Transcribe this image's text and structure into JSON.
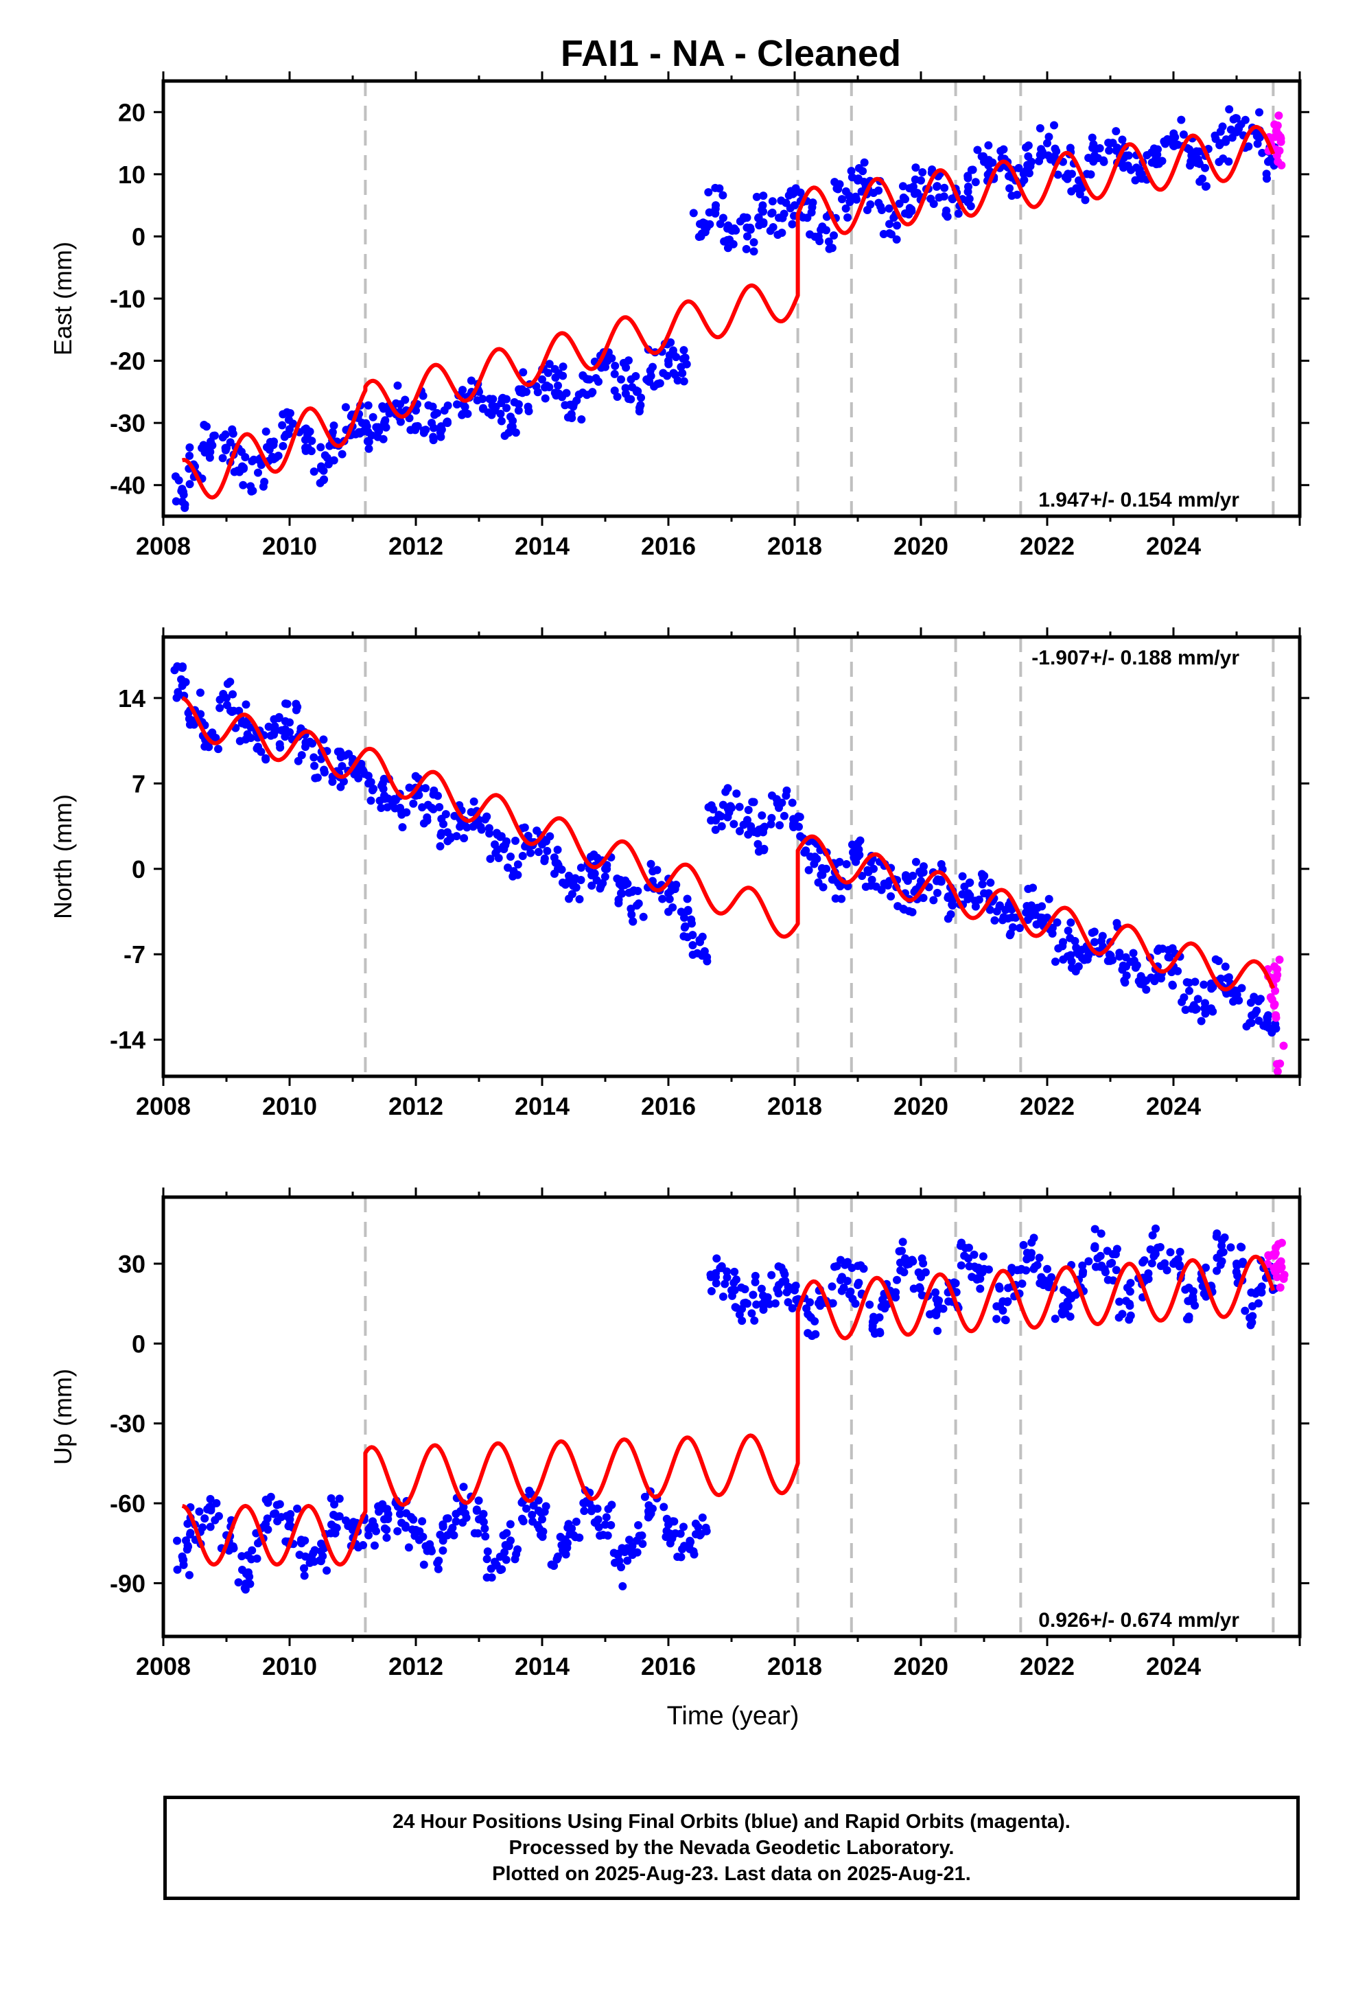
{
  "title": "FAI1  - NA - Cleaned",
  "xlabel": "Time (year)",
  "footer": {
    "line1": "24 Hour Positions Using Final Orbits (blue) and Rapid Orbits (magenta).",
    "line2": "Processed by the Nevada Geodetic Laboratory.",
    "line3": "Plotted on 2025-Aug-23. Last data on 2025-Aug-21."
  },
  "colors": {
    "final": "#0000ff",
    "rapid": "#ff00ff",
    "model": "#ff0000",
    "breaks": "#c0c0c0"
  },
  "chart_data": [
    {
      "type": "scatter",
      "panel": "east",
      "title": "",
      "ylabel": "East (mm)",
      "xlim": [
        2008.0,
        2026.0
      ],
      "ylim": [
        -45,
        25
      ],
      "xticks": [
        2008,
        2010,
        2012,
        2014,
        2016,
        2018,
        2020,
        2022,
        2024
      ],
      "yticks": [
        -40,
        -30,
        -20,
        -10,
        0,
        10,
        20
      ],
      "rate_label": "1.947+/- 0.154 mm/yr",
      "rate_position": "bottom-right",
      "breaks": [
        2011.2,
        2018.05,
        2018.9,
        2020.55,
        2021.58,
        2025.58
      ],
      "segments": [
        {
          "x": [
            2008.3,
            2011.2
          ],
          "offset": [
            -40,
            -28
          ],
          "amp": 4
        },
        {
          "x": [
            2011.2,
            2018.05
          ],
          "offset": [
            -27,
            -9.5
          ],
          "amp": 3.5
        },
        {
          "x": [
            2018.05,
            2025.58
          ],
          "offset": [
            3.5,
            14
          ],
          "amp": 4
        }
      ],
      "series": [
        {
          "name": "Final Orbits",
          "color": "#0000ff",
          "kind": "points",
          "x": [
            2008.3,
            2008.5,
            2008.75,
            2009.0,
            2009.25,
            2009.5,
            2009.75,
            2010.0,
            2010.25,
            2010.5,
            2010.75,
            2011.0,
            2011.15,
            2011.3,
            2011.5,
            2011.75,
            2012.0,
            2012.25,
            2012.5,
            2012.75,
            2013.0,
            2013.25,
            2013.5,
            2013.75,
            2014.0,
            2014.25,
            2014.5,
            2014.75,
            2015.0,
            2015.25,
            2015.5,
            2015.75,
            2016.0,
            2016.2,
            2016.5,
            2016.75,
            2017.0,
            2017.25,
            2017.5,
            2017.75,
            2018.0,
            2018.2,
            2018.5,
            2018.75,
            2019.0,
            2019.25,
            2019.5,
            2019.75,
            2020.0,
            2020.25,
            2020.5,
            2020.75,
            2021.0,
            2021.25,
            2021.5,
            2021.75,
            2022.0,
            2022.25,
            2022.5,
            2022.75,
            2023.0,
            2023.25,
            2023.5,
            2023.75,
            2024.0,
            2024.25,
            2024.5,
            2024.75,
            2025.0,
            2025.25,
            2025.5
          ],
          "y": [
            -41,
            -37,
            -33,
            -34,
            -37,
            -38,
            -33,
            -31,
            -34,
            -37,
            -33,
            -29,
            -30,
            -32,
            -30,
            -27,
            -28,
            -30,
            -30,
            -27,
            -25,
            -28,
            -29,
            -25,
            -23,
            -24,
            -27,
            -23,
            -21,
            -23,
            -25,
            -21,
            -20,
            -21,
            2,
            5,
            1,
            0,
            4,
            3,
            5,
            3,
            1,
            6,
            9,
            7,
            2,
            6,
            9,
            8,
            6,
            8,
            12,
            11,
            9,
            12,
            15,
            12,
            9,
            13,
            15,
            13,
            10,
            14,
            16,
            14,
            11,
            15,
            19,
            17,
            12
          ]
        },
        {
          "name": "Rapid Orbits",
          "color": "#ff00ff",
          "kind": "points",
          "x": [
            2025.6,
            2025.61,
            2025.62,
            2025.63,
            2025.64
          ],
          "y": [
            18,
            16,
            14,
            17,
            13
          ]
        }
      ]
    },
    {
      "type": "scatter",
      "panel": "north",
      "title": "",
      "ylabel": "North (mm)",
      "xlim": [
        2008.0,
        2026.0
      ],
      "ylim": [
        -17,
        19
      ],
      "xticks": [
        2008,
        2010,
        2012,
        2014,
        2016,
        2018,
        2020,
        2022,
        2024
      ],
      "yticks": [
        -14,
        -7,
        0,
        7,
        14
      ],
      "rate_label": "-1.907+/- 0.188 mm/yr",
      "rate_position": "top-right",
      "breaks": [
        2011.2,
        2018.05,
        2018.9,
        2020.55,
        2021.58,
        2025.58
      ],
      "segments": [
        {
          "x": [
            2008.3,
            2011.2
          ],
          "offset": [
            12.5,
            8.5
          ],
          "amp": 1.5
        },
        {
          "x": [
            2011.2,
            2018.05
          ],
          "offset": [
            8.5,
            -4.5
          ],
          "amp": 1.5
        },
        {
          "x": [
            2018.05,
            2025.58
          ],
          "offset": [
            1.5,
            -9.5
          ],
          "amp": 1.5
        }
      ],
      "series": [
        {
          "name": "Final Orbits",
          "color": "#0000ff",
          "kind": "points",
          "x": [
            2008.3,
            2008.5,
            2008.75,
            2009.0,
            2009.25,
            2009.5,
            2009.75,
            2010.0,
            2010.25,
            2010.5,
            2010.75,
            2011.0,
            2011.25,
            2011.5,
            2011.75,
            2012.0,
            2012.25,
            2012.5,
            2012.75,
            2013.0,
            2013.25,
            2013.5,
            2013.75,
            2014.0,
            2014.25,
            2014.5,
            2014.75,
            2015.0,
            2015.25,
            2015.5,
            2015.75,
            2016.0,
            2016.25,
            2016.5,
            2016.75,
            2017.0,
            2017.25,
            2017.5,
            2017.75,
            2018.0,
            2018.25,
            2018.5,
            2018.75,
            2019.0,
            2019.25,
            2019.5,
            2019.75,
            2020.0,
            2020.25,
            2020.5,
            2020.75,
            2021.0,
            2021.25,
            2021.5,
            2021.75,
            2022.0,
            2022.25,
            2022.5,
            2022.75,
            2023.0,
            2023.25,
            2023.5,
            2023.75,
            2024.0,
            2024.25,
            2024.5,
            2024.75,
            2025.0,
            2025.25,
            2025.5
          ],
          "y": [
            15,
            13,
            11,
            14,
            12,
            10,
            11,
            12,
            10,
            9,
            8,
            9,
            7,
            6,
            5,
            6,
            5,
            3,
            4,
            4,
            2,
            1,
            2,
            2,
            0,
            -1,
            0,
            0,
            -2,
            -3,
            -1,
            -2,
            -4,
            -6,
            4,
            5,
            4,
            3,
            5,
            4,
            1,
            0,
            -1,
            1,
            0,
            -1,
            -2,
            -1,
            -1,
            -3,
            -2,
            -2,
            -3,
            -4,
            -3,
            -4,
            -6,
            -7,
            -6,
            -6,
            -8,
            -9,
            -8,
            -8,
            -10,
            -11,
            -9,
            -10,
            -12,
            -12
          ]
        },
        {
          "name": "Rapid Orbits",
          "color": "#ff00ff",
          "kind": "points",
          "x": [
            2025.6,
            2025.61,
            2025.62,
            2025.63,
            2025.64
          ],
          "y": [
            -8,
            -10,
            -12,
            -9,
            -16
          ]
        }
      ]
    },
    {
      "type": "scatter",
      "panel": "up",
      "title": "",
      "ylabel": "Up (mm)",
      "xlim": [
        2008.0,
        2026.0
      ],
      "ylim": [
        -110,
        55
      ],
      "xticks": [
        2008,
        2010,
        2012,
        2014,
        2016,
        2018,
        2020,
        2022,
        2024
      ],
      "yticks": [
        -90,
        -60,
        -30,
        0,
        30
      ],
      "rate_label": "0.926+/- 0.674 mm/yr",
      "rate_position": "bottom-right",
      "breaks": [
        2011.2,
        2018.05,
        2018.9,
        2020.55,
        2021.58,
        2025.58
      ],
      "segments": [
        {
          "x": [
            2008.3,
            2011.2
          ],
          "offset": [
            -72,
            -72
          ],
          "amp": 11
        },
        {
          "x": [
            2011.2,
            2018.05
          ],
          "offset": [
            -50,
            -45
          ],
          "amp": 11
        },
        {
          "x": [
            2018.05,
            2025.58
          ],
          "offset": [
            12,
            22
          ],
          "amp": 11
        }
      ],
      "series": [
        {
          "name": "Final Orbits",
          "color": "#0000ff",
          "kind": "points",
          "x": [
            2008.3,
            2008.5,
            2008.75,
            2009.0,
            2009.25,
            2009.5,
            2009.75,
            2010.0,
            2010.25,
            2010.5,
            2010.75,
            2011.0,
            2011.25,
            2011.5,
            2011.75,
            2012.0,
            2012.25,
            2012.5,
            2012.75,
            2013.0,
            2013.25,
            2013.5,
            2013.75,
            2014.0,
            2014.25,
            2014.5,
            2014.75,
            2015.0,
            2015.25,
            2015.5,
            2015.75,
            2016.0,
            2016.25,
            2016.5,
            2016.75,
            2017.0,
            2017.25,
            2017.5,
            2017.75,
            2018.0,
            2018.25,
            2018.5,
            2018.75,
            2019.0,
            2019.25,
            2019.5,
            2019.75,
            2020.0,
            2020.25,
            2020.5,
            2020.75,
            2021.0,
            2021.25,
            2021.5,
            2021.75,
            2022.0,
            2022.25,
            2022.5,
            2022.75,
            2023.0,
            2023.25,
            2023.5,
            2023.75,
            2024.0,
            2024.25,
            2024.5,
            2024.75,
            2025.0,
            2025.25,
            2025.5
          ],
          "y": [
            -80,
            -68,
            -62,
            -72,
            -85,
            -75,
            -64,
            -68,
            -80,
            -78,
            -65,
            -70,
            -72,
            -66,
            -64,
            -70,
            -78,
            -72,
            -60,
            -66,
            -82,
            -74,
            -62,
            -66,
            -80,
            -72,
            -60,
            -68,
            -84,
            -74,
            -62,
            -68,
            -76,
            -72,
            25,
            20,
            15,
            18,
            22,
            20,
            10,
            16,
            25,
            22,
            10,
            18,
            32,
            25,
            12,
            20,
            32,
            28,
            14,
            22,
            34,
            28,
            14,
            24,
            36,
            30,
            16,
            24,
            36,
            30,
            16,
            22,
            34,
            30,
            14,
            26
          ]
        },
        {
          "name": "Rapid Orbits",
          "color": "#ff00ff",
          "kind": "points",
          "x": [
            2025.6,
            2025.61,
            2025.62,
            2025.63,
            2025.64
          ],
          "y": [
            33,
            27,
            36,
            29,
            25
          ]
        }
      ]
    }
  ]
}
